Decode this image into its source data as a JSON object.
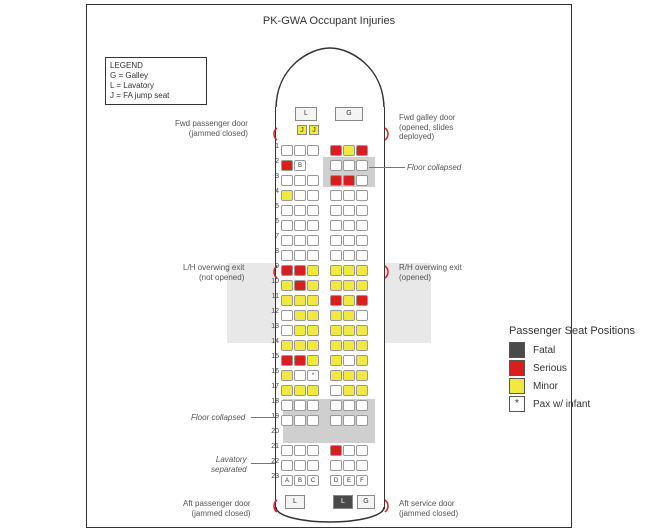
{
  "title": "PK-GWA Occupant Injuries",
  "legend": {
    "title": "LEGEND",
    "items": [
      "G = Galley",
      "L = Lavatory",
      "J = FA jump seat"
    ]
  },
  "seat_legend": {
    "title": "Passenger Seat Positions",
    "items": [
      {
        "label": "Fatal",
        "color": "#4a4a4a"
      },
      {
        "label": "Serious",
        "color": "#d91e1e"
      },
      {
        "label": "Minor",
        "color": "#f2e940"
      },
      {
        "label": "Pax w/ infant",
        "color": "#ffffff",
        "mark": "*"
      }
    ]
  },
  "colors": {
    "empty": "#ffffff",
    "fatal": "#4a4a4a",
    "serious": "#d91e1e",
    "minor": "#f2e940",
    "hull": "#333333",
    "grey": "#cfcfcf",
    "wing": "#e8e8e8"
  },
  "annotations": {
    "fwd_pax_door": {
      "l1": "Fwd passenger door",
      "l2": "(jammed closed)"
    },
    "fwd_galley": {
      "l1": "Fwd galley door",
      "l2": "(opened, slides",
      "l3": "deployed)"
    },
    "floor_collapsed_fwd": "Floor collapsed",
    "lh_overwing": {
      "l1": "L/H overwing exit",
      "l2": "(not opened)"
    },
    "rh_overwing": {
      "l1": "R/H overwing exit",
      "l2": "(opened)"
    },
    "floor_collapsed_aft": "Floor collapsed",
    "lav_separated": {
      "l1": "Lavatory",
      "l2": "separated"
    },
    "aft_pax_door": {
      "l1": "Aft passenger door",
      "l2": "(jammed closed)"
    },
    "aft_svc_door": {
      "l1": "Aft service door",
      "l2": "(jammed closed)"
    },
    "col_labels": [
      "A",
      "B",
      "C",
      "D",
      "E",
      "F"
    ]
  },
  "compartments": {
    "fwd_L": "L",
    "fwd_G": "G",
    "jumps": [
      "J",
      "J"
    ],
    "aft_L1": "L",
    "aft_L2": "L",
    "aft_G": "G"
  },
  "cabin": {
    "rows": [
      {
        "n": 1,
        "left": [
          "e",
          "e",
          "e"
        ],
        "right": [
          "s",
          "m",
          "s"
        ]
      },
      {
        "n": 2,
        "left": [
          "s",
          "eB",
          "x"
        ],
        "right": [
          "e",
          "e",
          "e"
        ]
      },
      {
        "n": 3,
        "left": [
          "e",
          "e",
          "e"
        ],
        "right": [
          "s",
          "s",
          "e"
        ]
      },
      {
        "n": 4,
        "left": [
          "m",
          "e",
          "e"
        ],
        "right": [
          "e",
          "e",
          "e"
        ]
      },
      {
        "n": 5,
        "left": [
          "e",
          "e",
          "e"
        ],
        "right": [
          "e",
          "e",
          "e"
        ]
      },
      {
        "n": 6,
        "left": [
          "e",
          "e",
          "e"
        ],
        "right": [
          "e",
          "e",
          "e"
        ]
      },
      {
        "n": 7,
        "left": [
          "e",
          "e",
          "e"
        ],
        "right": [
          "e",
          "e",
          "e"
        ]
      },
      {
        "n": 8,
        "left": [
          "e",
          "e",
          "e"
        ],
        "right": [
          "e",
          "e",
          "e"
        ]
      },
      {
        "n": 9,
        "left": [
          "s",
          "s",
          "m"
        ],
        "right": [
          "m",
          "m",
          "m"
        ]
      },
      {
        "n": 10,
        "left": [
          "m",
          "s",
          "m"
        ],
        "right": [
          "m",
          "m",
          "m"
        ]
      },
      {
        "n": 11,
        "left": [
          "m",
          "m",
          "m"
        ],
        "right": [
          "s",
          "m",
          "s"
        ]
      },
      {
        "n": 12,
        "left": [
          "e",
          "m",
          "m"
        ],
        "right": [
          "m",
          "m",
          "e"
        ]
      },
      {
        "n": 13,
        "left": [
          "e",
          "m",
          "m"
        ],
        "right": [
          "m",
          "m",
          "m"
        ]
      },
      {
        "n": 14,
        "left": [
          "m",
          "m",
          "m"
        ],
        "right": [
          "m",
          "m",
          "m"
        ]
      },
      {
        "n": 15,
        "left": [
          "s",
          "s",
          "m"
        ],
        "right": [
          "m",
          "e",
          "m"
        ]
      },
      {
        "n": 16,
        "left": [
          "m",
          "e",
          "e*"
        ],
        "right": [
          "m",
          "m",
          "m"
        ]
      },
      {
        "n": 17,
        "left": [
          "m",
          "m",
          "m"
        ],
        "right": [
          "e",
          "m",
          "m"
        ]
      },
      {
        "n": 18,
        "left": [
          "e",
          "e",
          "e"
        ],
        "right": [
          "e",
          "e",
          "e"
        ]
      },
      {
        "n": 19,
        "left": [
          "e",
          "e",
          "e"
        ],
        "right": [
          "e",
          "e",
          "e"
        ]
      },
      {
        "n": 20,
        "left": [
          "x",
          "x",
          "x"
        ],
        "right": [
          "x",
          "x",
          "x"
        ]
      },
      {
        "n": 21,
        "left": [
          "e",
          "e",
          "e"
        ],
        "right": [
          "s",
          "e",
          "e"
        ]
      },
      {
        "n": 22,
        "left": [
          "e",
          "e",
          "e"
        ],
        "right": [
          "e",
          "e",
          "e"
        ]
      },
      {
        "n": 23,
        "left": [
          "eA",
          "eB",
          "eC"
        ],
        "right": [
          "eD",
          "eE",
          "eF"
        ]
      }
    ],
    "floor_collapsed_fwd_rows": [
      2,
      3
    ],
    "floor_collapsed_aft_rows": [
      18,
      19,
      20
    ]
  }
}
